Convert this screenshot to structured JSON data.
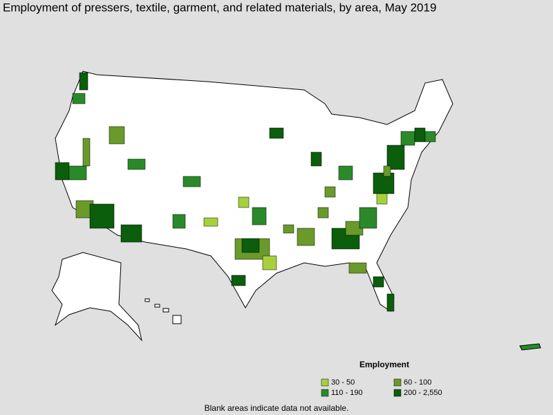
{
  "title": "Employment of pressers, textile, garment, and related materials, by area, May 2019",
  "legend": {
    "title": "Employment",
    "items": [
      {
        "label": "30 - 50",
        "color": "#a6d13c"
      },
      {
        "label": "60 - 100",
        "color": "#6a9a2a"
      },
      {
        "label": "110 - 190",
        "color": "#2a8a2a"
      },
      {
        "label": "200 - 2,550",
        "color": "#0b5e0b"
      }
    ]
  },
  "note": "Blank areas indicate data not available."
}
